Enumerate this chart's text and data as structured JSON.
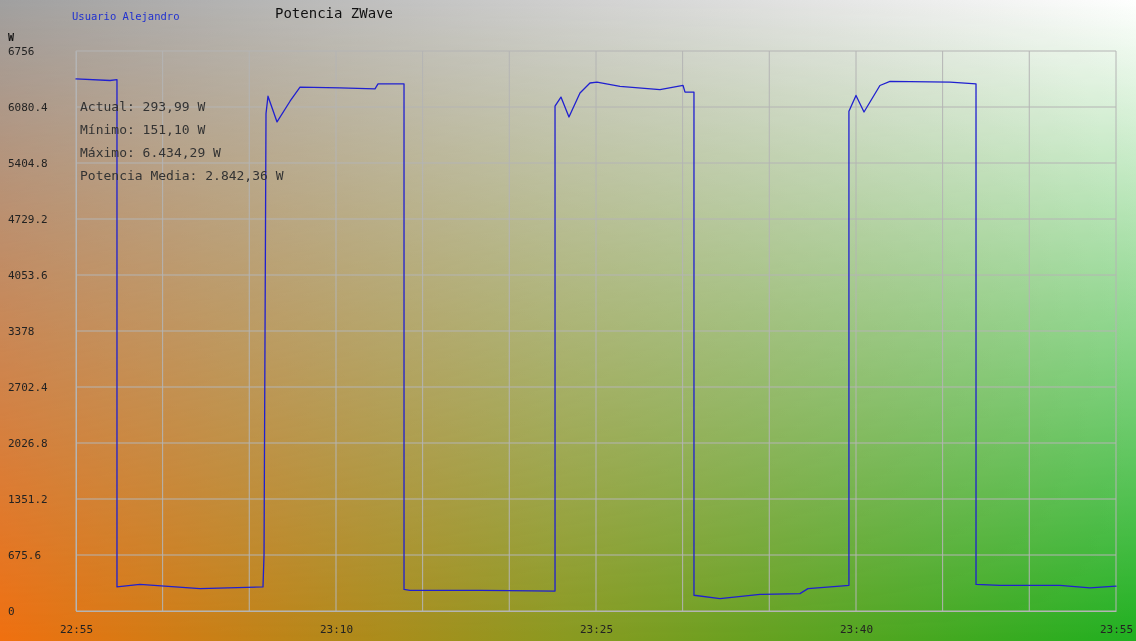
{
  "chart_data": {
    "type": "line",
    "title": "Potencia ZWave",
    "subtitle": "Usuario Alejandro",
    "ylabel": "W",
    "annotations": [
      "Actual: 293,99 W",
      "Mínimo: 151,10 W",
      "Máximo: 6.434,29 W",
      "Potencia Media: 2.842,36 W"
    ],
    "series": [
      {
        "color": "#2020d0",
        "x": [
          22.9167,
          22.9494,
          22.9561,
          22.9561,
          22.9782,
          23.0359,
          23.0965,
          23.0975,
          23.0994,
          23.1013,
          23.11,
          23.1225,
          23.1321,
          23.1705,
          23.2042,
          23.2071,
          23.2321,
          23.2321,
          23.2378,
          23.3052,
          23.3773,
          23.3773,
          23.383,
          23.3907,
          23.4013,
          23.4109,
          23.4176,
          23.4398,
          23.4782,
          23.5004,
          23.5023,
          23.5109,
          23.5109,
          23.5359,
          23.5744,
          23.6128,
          23.6205,
          23.6513,
          23.6599,
          23.6599,
          23.6667,
          23.6744,
          23.6897,
          23.6994,
          23.7571,
          23.7821,
          23.7821,
          23.8051,
          23.8628,
          23.8917,
          23.9167
        ],
        "values": [
          6420,
          6400,
          6410,
          290,
          320,
          270,
          290,
          680,
          6000,
          6210,
          5900,
          6150,
          6320,
          6310,
          6300,
          6360,
          6360,
          260,
          250,
          250,
          240,
          6090,
          6200,
          5960,
          6250,
          6370,
          6380,
          6330,
          6290,
          6340,
          6260,
          6260,
          190,
          150,
          200,
          210,
          270,
          300,
          310,
          6030,
          6220,
          6020,
          6340,
          6390,
          6380,
          6360,
          320,
          310,
          310,
          280,
          300
        ]
      }
    ],
    "xlim": [
      22.9167,
      23.9167
    ],
    "xticks": [
      {
        "value": 22.9167,
        "label": "22:55"
      },
      {
        "value": 23.0,
        "label": null
      },
      {
        "value": 23.0833,
        "label": null
      },
      {
        "value": 23.1667,
        "label": "23:10"
      },
      {
        "value": 23.25,
        "label": null
      },
      {
        "value": 23.3333,
        "label": null
      },
      {
        "value": 23.4167,
        "label": "23:25"
      },
      {
        "value": 23.5,
        "label": null
      },
      {
        "value": 23.5833,
        "label": null
      },
      {
        "value": 23.6667,
        "label": "23:40"
      },
      {
        "value": 23.75,
        "label": null
      },
      {
        "value": 23.8333,
        "label": null
      },
      {
        "value": 23.9167,
        "label": "23:55"
      }
    ],
    "ylim": [
      0,
      6756
    ],
    "yticks": [
      0,
      675.6,
      1351.2,
      2026.8,
      2702.4,
      3378,
      4053.6,
      4729.2,
      5404.8,
      6080.4,
      6756
    ],
    "grid": true,
    "marker": "none",
    "line_style": "solid"
  }
}
